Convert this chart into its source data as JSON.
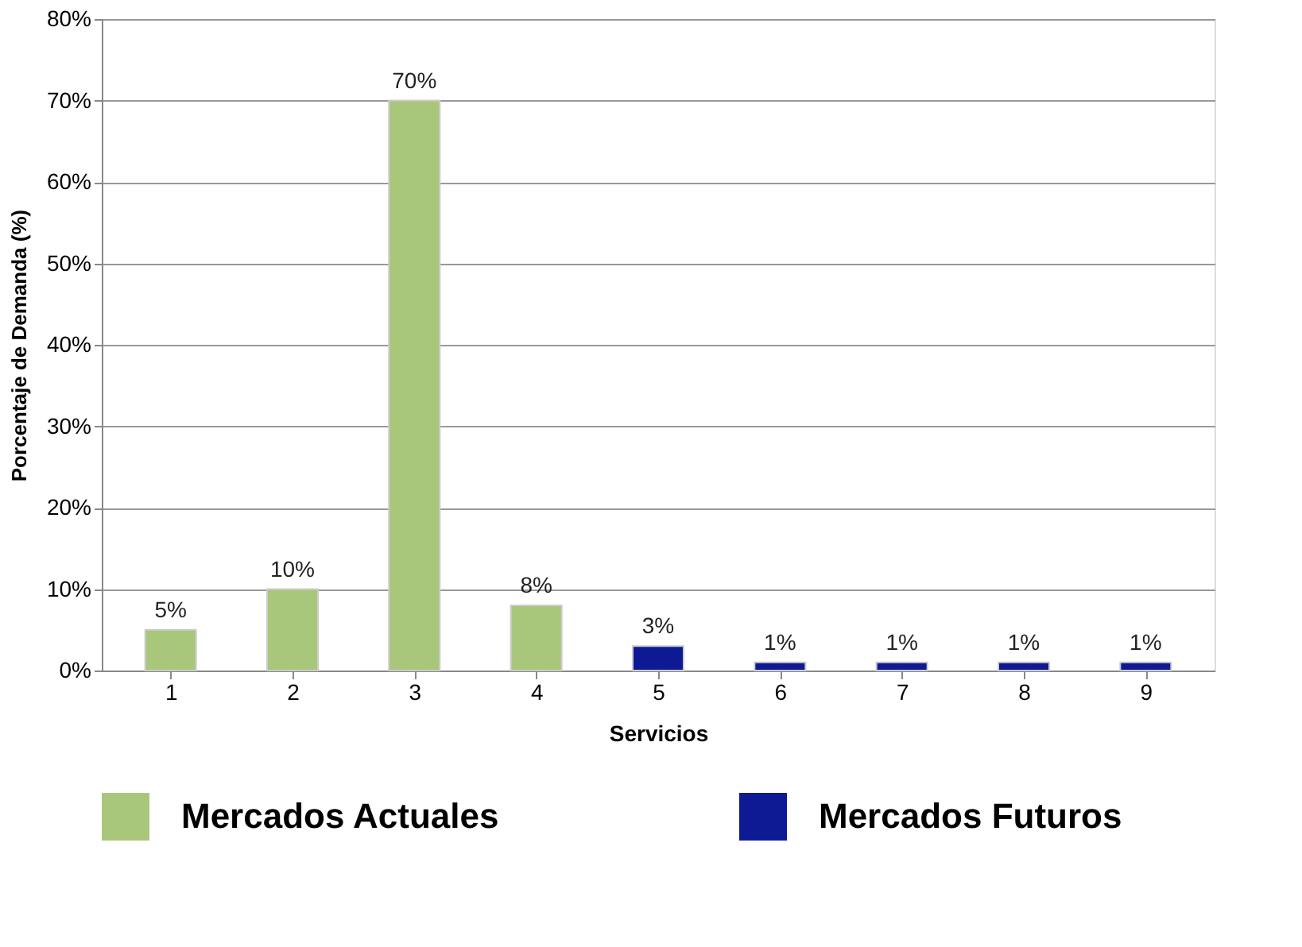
{
  "chart_data": {
    "type": "bar",
    "xlabel": "Servicios",
    "ylabel": "Porcentaje de Demanda (%)",
    "categories": [
      "1",
      "2",
      "3",
      "4",
      "5",
      "6",
      "7",
      "8",
      "9"
    ],
    "series": [
      {
        "name": "Mercados Actuales",
        "color": "#a9c77a",
        "values": [
          5,
          10,
          70,
          8,
          null,
          null,
          null,
          null,
          null
        ],
        "value_labels": [
          "5%",
          "10%",
          "70%",
          "8%",
          null,
          null,
          null,
          null,
          null
        ]
      },
      {
        "name": "Mercados Futuros",
        "color": "#0d1a94",
        "values": [
          null,
          null,
          null,
          null,
          3,
          1,
          1,
          1,
          1
        ],
        "value_labels": [
          null,
          null,
          null,
          null,
          "3%",
          "1%",
          "1%",
          "1%",
          "1%"
        ]
      }
    ],
    "ylim": [
      0,
      80
    ],
    "yticks": [
      {
        "value": 0,
        "label": "0%"
      },
      {
        "value": 10,
        "label": "10%"
      },
      {
        "value": 20,
        "label": "20%"
      },
      {
        "value": 30,
        "label": "30%"
      },
      {
        "value": 40,
        "label": "40%"
      },
      {
        "value": 50,
        "label": "50%"
      },
      {
        "value": 60,
        "label": "60%"
      },
      {
        "value": 70,
        "label": "70%"
      },
      {
        "value": 80,
        "label": "80%"
      }
    ],
    "grid": "y",
    "legend": "bottom"
  }
}
